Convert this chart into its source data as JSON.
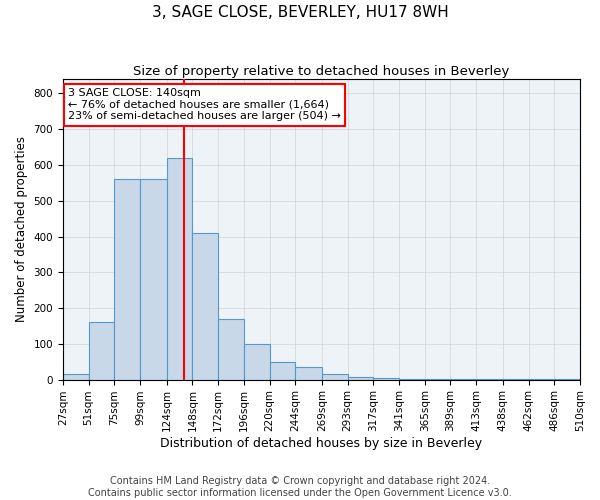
{
  "title": "3, SAGE CLOSE, BEVERLEY, HU17 8WH",
  "subtitle": "Size of property relative to detached houses in Beverley",
  "xlabel": "Distribution of detached houses by size in Beverley",
  "ylabel": "Number of detached properties",
  "bin_edges": [
    27,
    51,
    75,
    99,
    124,
    148,
    172,
    196,
    220,
    244,
    269,
    293,
    317,
    341,
    365,
    389,
    413,
    438,
    462,
    486,
    510
  ],
  "bar_heights": [
    15,
    160,
    560,
    560,
    620,
    410,
    170,
    100,
    50,
    35,
    15,
    8,
    5,
    3,
    2,
    1,
    1,
    1,
    1,
    1
  ],
  "bar_color": "#c8d8e8",
  "bar_edge_color": "#5599cc",
  "red_line_x": 140,
  "ylim": [
    0,
    840
  ],
  "yticks": [
    0,
    100,
    200,
    300,
    400,
    500,
    600,
    700,
    800
  ],
  "annotation_text": "3 SAGE CLOSE: 140sqm\n← 76% of detached houses are smaller (1,664)\n23% of semi-detached houses are larger (504) →",
  "annotation_box_color": "white",
  "annotation_box_edge": "red",
  "footer_text": "Contains HM Land Registry data © Crown copyright and database right 2024.\nContains public sector information licensed under the Open Government Licence v3.0.",
  "title_fontsize": 11,
  "subtitle_fontsize": 9.5,
  "xlabel_fontsize": 9,
  "ylabel_fontsize": 8.5,
  "tick_fontsize": 7.5,
  "annotation_fontsize": 8,
  "footer_fontsize": 7
}
